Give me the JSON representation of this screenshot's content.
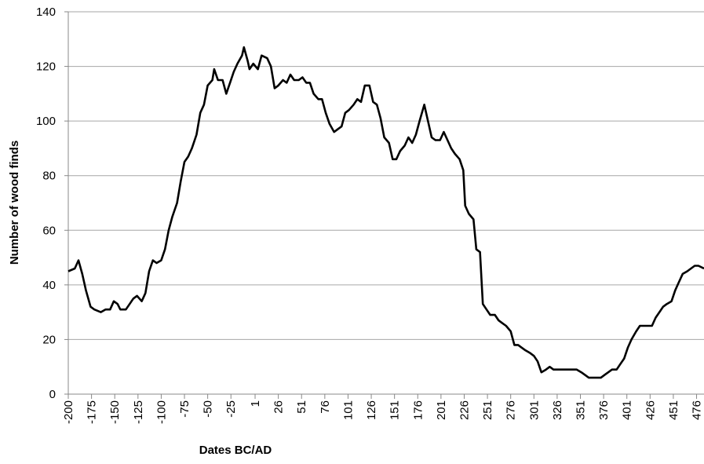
{
  "chart_data": {
    "type": "line",
    "x_label": "Dates BC/AD",
    "y_label": "Number of wood finds",
    "x": [
      -200,
      -193,
      -189,
      -185,
      -181,
      -176,
      -172,
      -165,
      -160,
      -155,
      -151,
      -147,
      -144,
      -138,
      -134,
      -130,
      -126,
      -121,
      -117,
      -113,
      -109,
      -105,
      -100,
      -96,
      -92,
      -88,
      -83,
      -79,
      -75,
      -71,
      -67,
      -62,
      -58,
      -54,
      -50,
      -45,
      -43,
      -39,
      -34,
      -30,
      -26,
      -22,
      -18,
      -13,
      -11,
      -7,
      -5,
      -1,
      4,
      8,
      14,
      18,
      22,
      26,
      31,
      35,
      39,
      43,
      48,
      52,
      56,
      60,
      64,
      69,
      73,
      77,
      81,
      86,
      90,
      94,
      98,
      102,
      107,
      111,
      115,
      119,
      124,
      128,
      132,
      136,
      140,
      145,
      149,
      153,
      157,
      162,
      166,
      170,
      174,
      178,
      183,
      187,
      191,
      195,
      200,
      204,
      208,
      212,
      216,
      221,
      225,
      227,
      231,
      236,
      239,
      243,
      246,
      250,
      254,
      259,
      263,
      267,
      271,
      276,
      280,
      284,
      288,
      292,
      297,
      301,
      305,
      309,
      314,
      318,
      322,
      326,
      335,
      343,
      347,
      352,
      356,
      360,
      368,
      373,
      377,
      381,
      385,
      390,
      394,
      398,
      402,
      406,
      411,
      415,
      423,
      428,
      432,
      436,
      440,
      444,
      449,
      453,
      457,
      461,
      466,
      470,
      474,
      478,
      484
    ],
    "series": [
      {
        "color": "#000000",
        "values": [
          45,
          46,
          49,
          44,
          38,
          32,
          31,
          30,
          31,
          31,
          34,
          33,
          31,
          31,
          33,
          35,
          36,
          34,
          37,
          45,
          49,
          48,
          49,
          53,
          60,
          65,
          70,
          78,
          85,
          87,
          90,
          95,
          103,
          106,
          113,
          115,
          119,
          115,
          115,
          110,
          114,
          118,
          121,
          124,
          127,
          122,
          119,
          121,
          119,
          124,
          123,
          120,
          112,
          113,
          115,
          114,
          117,
          115,
          115,
          116,
          114,
          114,
          110,
          108,
          108,
          103,
          99,
          96,
          97,
          98,
          103,
          104,
          106,
          108,
          107,
          113,
          113,
          107,
          106,
          101,
          94,
          92,
          86,
          86,
          89,
          91,
          94,
          92,
          95,
          100,
          106,
          100,
          94,
          93,
          93,
          96,
          93,
          90,
          88,
          86,
          82,
          69,
          66,
          64,
          53,
          52,
          33,
          31,
          29,
          29,
          27,
          26,
          25,
          23,
          18,
          18,
          17,
          16,
          15,
          14,
          12,
          8,
          9,
          10,
          9,
          9,
          9,
          9,
          9,
          8,
          7,
          6,
          6,
          6,
          7,
          8,
          9,
          9,
          11,
          13,
          17,
          20,
          23,
          25,
          25,
          25,
          28,
          30,
          32,
          33,
          34,
          38,
          41,
          44,
          45,
          46,
          47,
          47,
          46
        ]
      }
    ],
    "xlim": [
      -200,
      484
    ],
    "xticks": [
      -200,
      -175,
      -150,
      -125,
      -100,
      -75,
      -50,
      -25,
      1,
      26,
      51,
      76,
      101,
      126,
      151,
      176,
      201,
      226,
      251,
      276,
      301,
      326,
      351,
      376,
      401,
      426,
      451,
      476
    ],
    "ylim": [
      0,
      140
    ],
    "yticks": [
      0,
      20,
      40,
      60,
      80,
      100,
      120,
      140
    ],
    "grid": true
  }
}
